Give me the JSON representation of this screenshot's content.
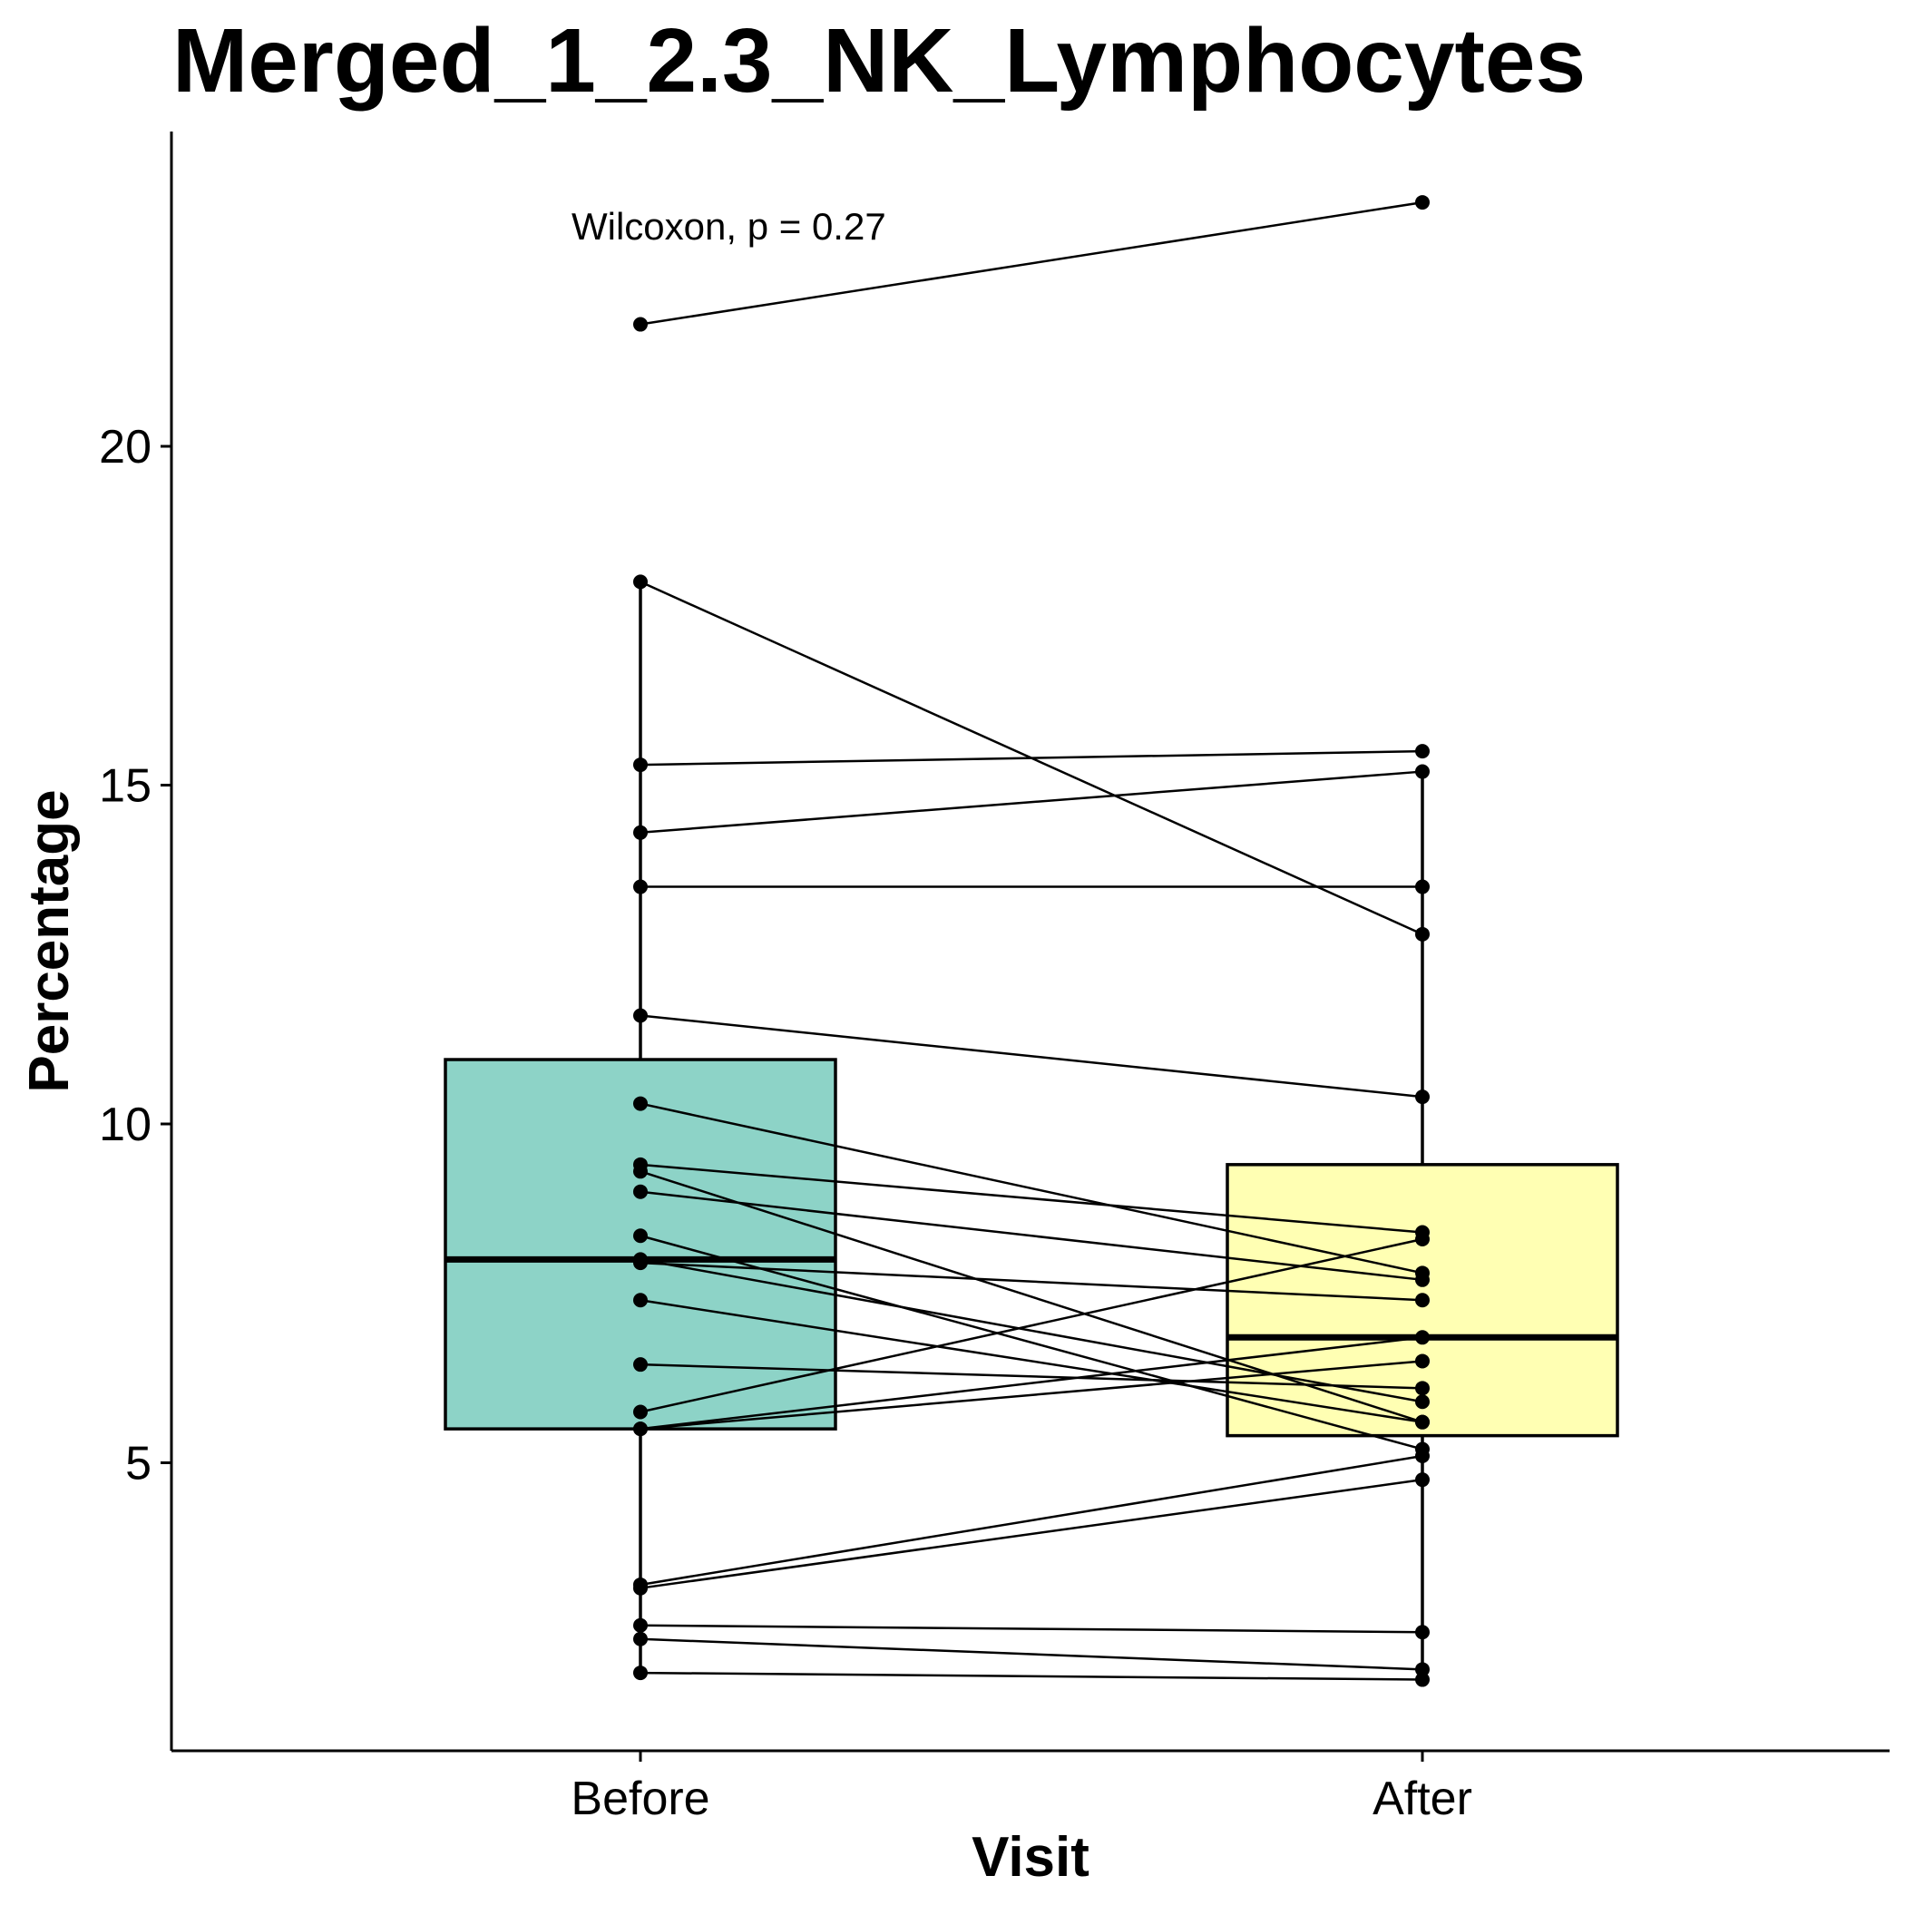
{
  "chart_data": {
    "type": "box",
    "title": "Merged_1_2.3_NK_Lymphocytes",
    "xlabel": "Visit",
    "ylabel": "Percentage",
    "categories": [
      "Before",
      "After"
    ],
    "ylim": [
      0.6,
      24.5
    ],
    "yticks": [
      5,
      10,
      15,
      20
    ],
    "annotation": "Wilcoxon, p = 0.27",
    "colors": {
      "Before": "#8dd3c7",
      "After": "#ffffb3"
    },
    "boxes": [
      {
        "category": "Before",
        "q1": 5.5,
        "median": 8.0,
        "q3": 10.95,
        "whisker_low": 1.9,
        "whisker_high": 18.0
      },
      {
        "category": "After",
        "q1": 5.4,
        "median": 6.85,
        "q3": 9.4,
        "whisker_low": 1.8,
        "whisker_high": 15.2
      }
    ],
    "pairs": [
      {
        "before": 21.8,
        "after": 23.6
      },
      {
        "before": 18.0,
        "after": 12.8
      },
      {
        "before": 15.3,
        "after": 15.5
      },
      {
        "before": 14.3,
        "after": 15.2
      },
      {
        "before": 13.5,
        "after": 13.5
      },
      {
        "before": 11.6,
        "after": 10.4
      },
      {
        "before": 10.3,
        "after": 7.8
      },
      {
        "before": 9.4,
        "after": 8.4
      },
      {
        "before": 9.3,
        "after": 5.6
      },
      {
        "before": 9.0,
        "after": 7.7
      },
      {
        "before": 8.35,
        "after": 5.2
      },
      {
        "before": 8.0,
        "after": 5.9
      },
      {
        "before": 7.95,
        "after": 7.4
      },
      {
        "before": 7.4,
        "after": 5.6
      },
      {
        "before": 6.45,
        "after": 6.1
      },
      {
        "before": 5.75,
        "after": 8.3
      },
      {
        "before": 5.5,
        "after": 6.5
      },
      {
        "before": 5.5,
        "after": 6.85
      },
      {
        "before": 3.2,
        "after": 5.1
      },
      {
        "before": 3.15,
        "after": 4.75
      },
      {
        "before": 2.6,
        "after": 2.5
      },
      {
        "before": 2.4,
        "after": 1.95
      },
      {
        "before": 1.9,
        "after": 1.8
      }
    ]
  }
}
